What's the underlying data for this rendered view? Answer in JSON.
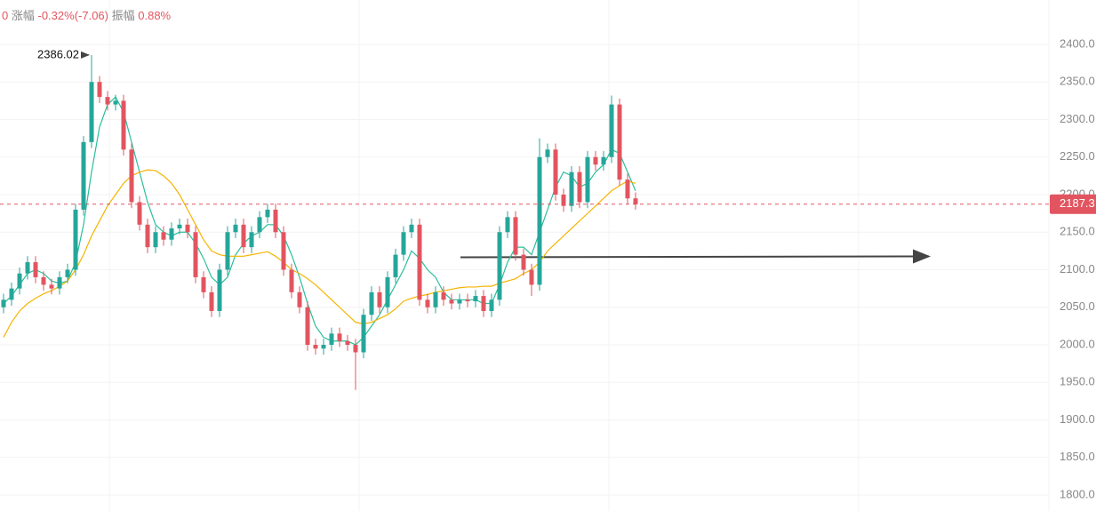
{
  "header": {
    "lead": "0",
    "change_label": "涨幅",
    "change_value": "-0.32%(-7.06)",
    "amplitude_label": "振幅",
    "amplitude_value": "0.88%"
  },
  "chart_data": {
    "type": "candlestick",
    "up_color": "#26a69a",
    "down_color": "#e25560",
    "ylim": [
      1800,
      2400
    ],
    "yticks": [
      {
        "value": 1800,
        "label": "1800.0"
      },
      {
        "value": 1850,
        "label": "1850.0"
      },
      {
        "value": 1900,
        "label": "1900.0"
      },
      {
        "value": 1950,
        "label": "1950.0"
      },
      {
        "value": 2000,
        "label": "2000.0"
      },
      {
        "value": 2050,
        "label": "2050.0"
      },
      {
        "value": 2100,
        "label": "2100.0"
      },
      {
        "value": 2150,
        "label": "2150.0"
      },
      {
        "value": 2200,
        "label": "2200.0"
      },
      {
        "value": 2250,
        "label": "2250.0"
      },
      {
        "value": 2300,
        "label": "2300.0"
      },
      {
        "value": 2350,
        "label": "2350.0"
      },
      {
        "value": 2400,
        "label": "2400.0"
      }
    ],
    "grid": true,
    "open": [
      2050,
      2060,
      2075,
      2095,
      2110,
      2090,
      2080,
      2075,
      2090,
      2100,
      2180,
      2270,
      2350,
      2330,
      2320,
      2325,
      2260,
      2190,
      2160,
      2130,
      2150,
      2140,
      2155,
      2160,
      2150,
      2090,
      2070,
      2045,
      2100,
      2150,
      2160,
      2130,
      2150,
      2170,
      2180,
      2150,
      2100,
      2070,
      2050,
      2000,
      1995,
      2000,
      2015,
      2005,
      2000,
      1990,
      2040,
      2070,
      2050,
      2090,
      2120,
      2150,
      2160,
      2060,
      2050,
      2070,
      2060,
      2055,
      2060,
      2058,
      2065,
      2045,
      2060,
      2150,
      2170,
      2120,
      2100,
      2080,
      2250,
      2260,
      2200,
      2185,
      2230,
      2190,
      2250,
      2240,
      2250,
      2320,
      2220,
      2195
    ],
    "high": [
      2068,
      2083,
      2103,
      2118,
      2118,
      2098,
      2088,
      2098,
      2108,
      2188,
      2278,
      2386.02,
      2358,
      2338,
      2333,
      2333,
      2268,
      2198,
      2168,
      2158,
      2158,
      2163,
      2168,
      2168,
      2158,
      2098,
      2078,
      2108,
      2158,
      2168,
      2168,
      2158,
      2178,
      2188,
      2188,
      2158,
      2108,
      2078,
      2058,
      2008,
      2008,
      2023,
      2023,
      2013,
      2008,
      2048,
      2078,
      2078,
      2098,
      2128,
      2158,
      2168,
      2168,
      2068,
      2078,
      2078,
      2068,
      2068,
      2068,
      2073,
      2073,
      2068,
      2158,
      2178,
      2178,
      2128,
      2108,
      2275,
      2268,
      2268,
      2208,
      2238,
      2238,
      2258,
      2258,
      2258,
      2332,
      2328,
      2228,
      2203
    ],
    "low": [
      2042,
      2052,
      2067,
      2087,
      2082,
      2072,
      2067,
      2067,
      2082,
      2092,
      2172,
      2262,
      2322,
      2312,
      2312,
      2252,
      2182,
      2152,
      2122,
      2122,
      2132,
      2132,
      2147,
      2142,
      2082,
      2062,
      2037,
      2037,
      2092,
      2142,
      2122,
      2122,
      2142,
      2162,
      2142,
      2092,
      2062,
      2042,
      1992,
      1987,
      1987,
      1992,
      1997,
      1992,
      1940,
      1982,
      2032,
      2042,
      2042,
      2082,
      2112,
      2142,
      2052,
      2042,
      2042,
      2052,
      2047,
      2047,
      2050,
      2050,
      2037,
      2037,
      2052,
      2142,
      2112,
      2092,
      2065,
      2072,
      2242,
      2192,
      2177,
      2177,
      2182,
      2182,
      2232,
      2232,
      2242,
      2212,
      2187,
      2180
    ],
    "close": [
      2060,
      2075,
      2095,
      2110,
      2090,
      2080,
      2075,
      2090,
      2100,
      2180,
      2270,
      2350,
      2330,
      2320,
      2325,
      2260,
      2190,
      2160,
      2130,
      2150,
      2140,
      2155,
      2160,
      2150,
      2090,
      2070,
      2045,
      2100,
      2150,
      2160,
      2130,
      2150,
      2170,
      2180,
      2150,
      2100,
      2070,
      2050,
      2000,
      1995,
      2000,
      2015,
      2005,
      2000,
      1990,
      2040,
      2070,
      2050,
      2090,
      2120,
      2150,
      2160,
      2060,
      2050,
      2070,
      2060,
      2055,
      2060,
      2058,
      2065,
      2045,
      2060,
      2150,
      2170,
      2120,
      2100,
      2080,
      2250,
      2260,
      2200,
      2185,
      2230,
      2190,
      2250,
      2240,
      2250,
      2320,
      2220,
      2195,
      2187.3
    ],
    "lines": [
      {
        "color": "#2bbf9a",
        "values": [
          2055,
          2065,
          2080,
          2095,
          2100,
          2095,
          2085,
          2082,
          2085,
          2110,
          2160,
          2230,
          2290,
          2320,
          2330,
          2310,
          2270,
          2230,
          2190,
          2160,
          2150,
          2145,
          2150,
          2150,
          2135,
          2115,
          2090,
          2080,
          2090,
          2120,
          2135,
          2145,
          2150,
          2160,
          2160,
          2145,
          2120,
          2090,
          2055,
          2025,
          2010,
          2005,
          2005,
          2005,
          2000,
          2010,
          2025,
          2040,
          2060,
          2080,
          2100,
          2125,
          2115,
          2100,
          2090,
          2070,
          2060,
          2060,
          2060,
          2060,
          2055,
          2055,
          2080,
          2110,
          2130,
          2130,
          2120,
          2150,
          2180,
          2210,
          2230,
          2225,
          2210,
          2215,
          2230,
          2240,
          2260,
          2255,
          2230,
          2205
        ]
      },
      {
        "color": "#f5b400",
        "values": [
          2010,
          2030,
          2045,
          2055,
          2062,
          2068,
          2072,
          2078,
          2085,
          2100,
          2120,
          2145,
          2165,
          2185,
          2200,
          2215,
          2225,
          2230,
          2233,
          2232,
          2225,
          2215,
          2200,
          2180,
          2160,
          2140,
          2125,
          2120,
          2118,
          2118,
          2118,
          2120,
          2122,
          2124,
          2118,
          2110,
          2100,
          2095,
          2088,
          2080,
          2070,
          2060,
          2050,
          2040,
          2030,
          2028,
          2030,
          2035,
          2040,
          2048,
          2058,
          2062,
          2065,
          2067,
          2070,
          2072,
          2074,
          2076,
          2077,
          2077,
          2078,
          2078,
          2082,
          2085,
          2088,
          2095,
          2100,
          2110,
          2125,
          2135,
          2145,
          2155,
          2165,
          2175,
          2185,
          2195,
          2205,
          2212,
          2218,
          2215
        ]
      }
    ]
  }
}
